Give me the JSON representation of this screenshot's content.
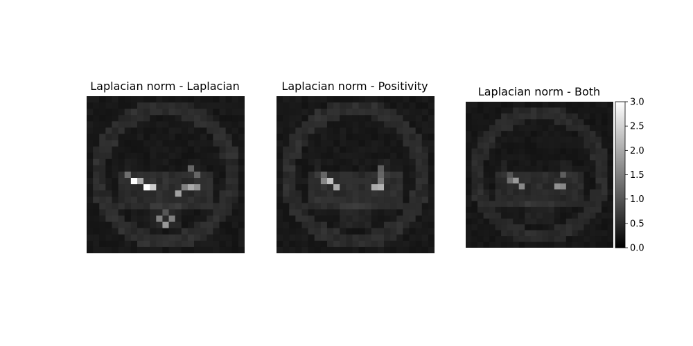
{
  "chart_data": [
    {
      "type": "heatmap",
      "title": "Laplacian norm - Laplacian",
      "colormap": "gray",
      "vmin": 0,
      "vmax": 3,
      "grid_shape": [
        25,
        25
      ],
      "hotspots": [
        {
          "row": 13,
          "col": 7,
          "value": 3.0
        },
        {
          "row": 14,
          "col": 9,
          "value": 3.0
        },
        {
          "row": 14,
          "col": 10,
          "value": 2.4
        },
        {
          "row": 13,
          "col": 8,
          "value": 2.0
        },
        {
          "row": 15,
          "col": 14,
          "value": 1.9
        },
        {
          "row": 14,
          "col": 16,
          "value": 2.0
        },
        {
          "row": 14,
          "col": 17,
          "value": 1.7
        },
        {
          "row": 14,
          "col": 15,
          "value": 1.5
        },
        {
          "row": 12,
          "col": 6,
          "value": 1.3
        },
        {
          "row": 11,
          "col": 16,
          "value": 1.2
        },
        {
          "row": 12,
          "col": 17,
          "value": 1.2
        },
        {
          "row": 19,
          "col": 11,
          "value": 1.5
        },
        {
          "row": 19,
          "col": 13,
          "value": 1.5
        },
        {
          "row": 20,
          "col": 12,
          "value": 1.8
        },
        {
          "row": 18,
          "col": 12,
          "value": 1.0
        }
      ]
    },
    {
      "type": "heatmap",
      "title": "Laplacian norm - Positivity",
      "colormap": "gray",
      "vmin": 0,
      "vmax": 3,
      "grid_shape": [
        25,
        25
      ],
      "hotspots": [
        {
          "row": 13,
          "col": 8,
          "value": 2.3
        },
        {
          "row": 14,
          "col": 9,
          "value": 2.0
        },
        {
          "row": 13,
          "col": 7,
          "value": 1.6
        },
        {
          "row": 14,
          "col": 15,
          "value": 2.0
        },
        {
          "row": 14,
          "col": 16,
          "value": 2.1
        },
        {
          "row": 13,
          "col": 16,
          "value": 1.4
        },
        {
          "row": 12,
          "col": 7,
          "value": 1.2
        },
        {
          "row": 11,
          "col": 16,
          "value": 1.1
        },
        {
          "row": 12,
          "col": 16,
          "value": 1.2
        }
      ]
    },
    {
      "type": "heatmap",
      "title": "Laplacian norm - Both",
      "colormap": "gray",
      "vmin": 0,
      "vmax": 3,
      "grid_shape": [
        25,
        25
      ],
      "hotspots": [
        {
          "row": 13,
          "col": 8,
          "value": 1.8
        },
        {
          "row": 14,
          "col": 9,
          "value": 1.6
        },
        {
          "row": 13,
          "col": 7,
          "value": 1.3
        },
        {
          "row": 14,
          "col": 15,
          "value": 1.7
        },
        {
          "row": 14,
          "col": 16,
          "value": 1.6
        },
        {
          "row": 12,
          "col": 16,
          "value": 1.1
        },
        {
          "row": 12,
          "col": 7,
          "value": 1.0
        }
      ],
      "colorbar": {
        "ticks": [
          0.0,
          0.5,
          1.0,
          1.5,
          2.0,
          2.5,
          3.0
        ],
        "tick_labels": [
          "0.0",
          "0.5",
          "1.0",
          "1.5",
          "2.0",
          "2.5",
          "3.0"
        ]
      }
    }
  ]
}
